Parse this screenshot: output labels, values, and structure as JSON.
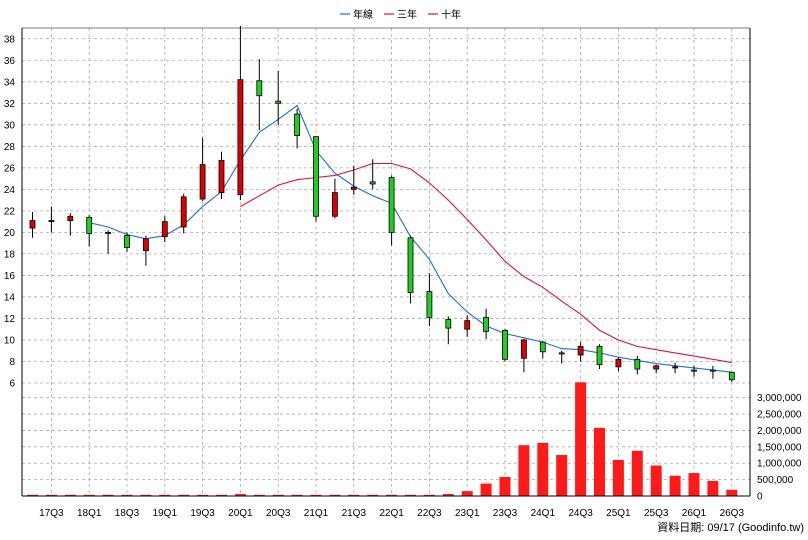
{
  "chart_data": {
    "type": "candlestick",
    "legend": [
      {
        "name": "年線",
        "color": "#1f6fd6"
      },
      {
        "name": "三年",
        "color": "#dc143c"
      },
      {
        "name": "十年",
        "color": "#b0186e"
      }
    ],
    "up_color": "#dd0000",
    "down_color": "#22cc22",
    "price_axis": {
      "min": 6,
      "max": 39,
      "ticks": [
        6,
        8,
        10,
        12,
        14,
        16,
        18,
        20,
        22,
        24,
        26,
        28,
        30,
        32,
        34,
        36,
        38
      ]
    },
    "volume_axis": {
      "min": 0,
      "max": 3600000,
      "ticks": [
        0,
        500000,
        1000000,
        1500000,
        2000000,
        2500000,
        3000000
      ],
      "tick_labels": [
        "0",
        "500,000",
        "1,000,000",
        "1,500,000",
        "2,000,000",
        "2,500,000",
        "3,000,000"
      ]
    },
    "x_labels": [
      {
        "i": 1,
        "label": "17Q3"
      },
      {
        "i": 3,
        "label": "18Q1"
      },
      {
        "i": 5,
        "label": "18Q3"
      },
      {
        "i": 7,
        "label": "19Q1"
      },
      {
        "i": 9,
        "label": "19Q3"
      },
      {
        "i": 11,
        "label": "20Q1"
      },
      {
        "i": 13,
        "label": "20Q3"
      },
      {
        "i": 15,
        "label": "21Q1"
      },
      {
        "i": 17,
        "label": "21Q3"
      },
      {
        "i": 19,
        "label": "22Q1"
      },
      {
        "i": 21,
        "label": "22Q3"
      },
      {
        "i": 23,
        "label": "23Q1"
      },
      {
        "i": 25,
        "label": "23Q3"
      },
      {
        "i": 27,
        "label": "24Q1"
      },
      {
        "i": 29,
        "label": "24Q3"
      },
      {
        "i": 31,
        "label": "25Q1"
      },
      {
        "i": 33,
        "label": "25Q3"
      },
      {
        "i": 35,
        "label": "26Q1"
      },
      {
        "i": 37,
        "label": "26Q3"
      }
    ],
    "candles": [
      {
        "o": 20.4,
        "h": 21.9,
        "l": 19.5,
        "c": 21.1
      },
      {
        "o": 21.1,
        "h": 22.4,
        "l": 20.0,
        "c": 21.1
      },
      {
        "o": 21.1,
        "h": 21.8,
        "l": 19.7,
        "c": 21.5
      },
      {
        "o": 21.4,
        "h": 21.6,
        "l": 18.7,
        "c": 19.9
      },
      {
        "o": 20.0,
        "h": 20.2,
        "l": 18.0,
        "c": 20.0
      },
      {
        "o": 19.7,
        "h": 20.0,
        "l": 18.2,
        "c": 18.6
      },
      {
        "o": 18.3,
        "h": 19.7,
        "l": 16.9,
        "c": 19.4
      },
      {
        "o": 19.6,
        "h": 21.5,
        "l": 19.1,
        "c": 21.0
      },
      {
        "o": 20.5,
        "h": 23.6,
        "l": 19.9,
        "c": 23.3
      },
      {
        "o": 23.1,
        "h": 28.8,
        "l": 22.9,
        "c": 26.3
      },
      {
        "o": 23.7,
        "h": 27.5,
        "l": 23.1,
        "c": 26.7
      },
      {
        "o": 23.5,
        "h": 39.2,
        "l": 23.0,
        "c": 34.2
      },
      {
        "o": 34.1,
        "h": 36.1,
        "l": 29.5,
        "c": 32.7
      },
      {
        "o": 32.2,
        "h": 35.0,
        "l": 30.0,
        "c": 32.0
      },
      {
        "o": 31.0,
        "h": 31.5,
        "l": 27.8,
        "c": 29.0
      },
      {
        "o": 28.9,
        "h": 28.9,
        "l": 21.0,
        "c": 21.5
      },
      {
        "o": 21.5,
        "h": 25.0,
        "l": 21.3,
        "c": 23.7
      },
      {
        "o": 24.0,
        "h": 26.2,
        "l": 23.5,
        "c": 24.2
      },
      {
        "o": 24.7,
        "h": 26.8,
        "l": 24.0,
        "c": 24.5
      },
      {
        "o": 25.1,
        "h": 25.3,
        "l": 18.8,
        "c": 20.0
      },
      {
        "o": 19.5,
        "h": 19.7,
        "l": 13.4,
        "c": 14.4
      },
      {
        "o": 14.5,
        "h": 16.2,
        "l": 11.3,
        "c": 12.1
      },
      {
        "o": 11.9,
        "h": 12.2,
        "l": 9.6,
        "c": 11.1
      },
      {
        "o": 11.0,
        "h": 12.3,
        "l": 10.3,
        "c": 11.8
      },
      {
        "o": 12.1,
        "h": 12.9,
        "l": 10.1,
        "c": 10.8
      },
      {
        "o": 10.9,
        "h": 11.0,
        "l": 8.0,
        "c": 8.2
      },
      {
        "o": 8.3,
        "h": 10.1,
        "l": 7.0,
        "c": 10.0
      },
      {
        "o": 9.8,
        "h": 9.9,
        "l": 8.3,
        "c": 8.9
      },
      {
        "o": 8.8,
        "h": 9.0,
        "l": 7.8,
        "c": 8.7
      },
      {
        "o": 8.6,
        "h": 9.8,
        "l": 8.0,
        "c": 9.4
      },
      {
        "o": 9.4,
        "h": 9.6,
        "l": 7.3,
        "c": 7.7
      },
      {
        "o": 7.5,
        "h": 8.4,
        "l": 7.1,
        "c": 8.2
      },
      {
        "o": 8.2,
        "h": 8.5,
        "l": 6.8,
        "c": 7.3
      },
      {
        "o": 7.3,
        "h": 7.7,
        "l": 6.9,
        "c": 7.6
      },
      {
        "o": 7.4,
        "h": 7.9,
        "l": 6.9,
        "c": 7.5
      },
      {
        "o": 7.2,
        "h": 7.6,
        "l": 6.6,
        "c": 7.1
      },
      {
        "o": 7.2,
        "h": 7.6,
        "l": 6.4,
        "c": 7.1
      },
      {
        "o": 7.0,
        "h": 7.0,
        "l": 6.1,
        "c": 6.3
      }
    ],
    "volumes": [
      8000,
      3000,
      5000,
      4000,
      3000,
      6000,
      4000,
      5000,
      5000,
      10000,
      15000,
      60000,
      18000,
      7000,
      6000,
      9000,
      5000,
      5000,
      5000,
      20000,
      5000,
      15000,
      60000,
      150000,
      380000,
      580000,
      1550000,
      1620000,
      1250000,
      3470000,
      2080000,
      1100000,
      1380000,
      930000,
      620000,
      700000,
      460000,
      190000
    ],
    "series": [
      {
        "name": "年線",
        "color": "#1f6fd6",
        "values": [
          null,
          null,
          null,
          20.9,
          20.5,
          19.8,
          19.4,
          19.7,
          20.7,
          22.4,
          23.8,
          26.7,
          29.3,
          30.5,
          31.8,
          27.6,
          25.5,
          24.3,
          23.4,
          22.7,
          19.6,
          17.5,
          14.3,
          12.6,
          11.3,
          10.6,
          10.2,
          9.8,
          9.2,
          9.1,
          8.8,
          8.4,
          8.1,
          7.8,
          7.6,
          7.4,
          7.2,
          7.0
        ]
      },
      {
        "name": "三年",
        "color": "#dc143c",
        "values": [
          null,
          null,
          null,
          null,
          null,
          null,
          null,
          null,
          null,
          null,
          null,
          22.4,
          23.4,
          24.4,
          24.9,
          25.1,
          25.3,
          25.8,
          26.4,
          26.4,
          25.9,
          24.6,
          23.0,
          21.2,
          19.3,
          17.3,
          15.9,
          14.9,
          13.6,
          12.4,
          10.9,
          10.0,
          9.4,
          9.1,
          8.8,
          8.5,
          8.2,
          7.9
        ]
      }
    ]
  },
  "footer_note": "資料日期: 09/17  (Goodinfo.tw)"
}
